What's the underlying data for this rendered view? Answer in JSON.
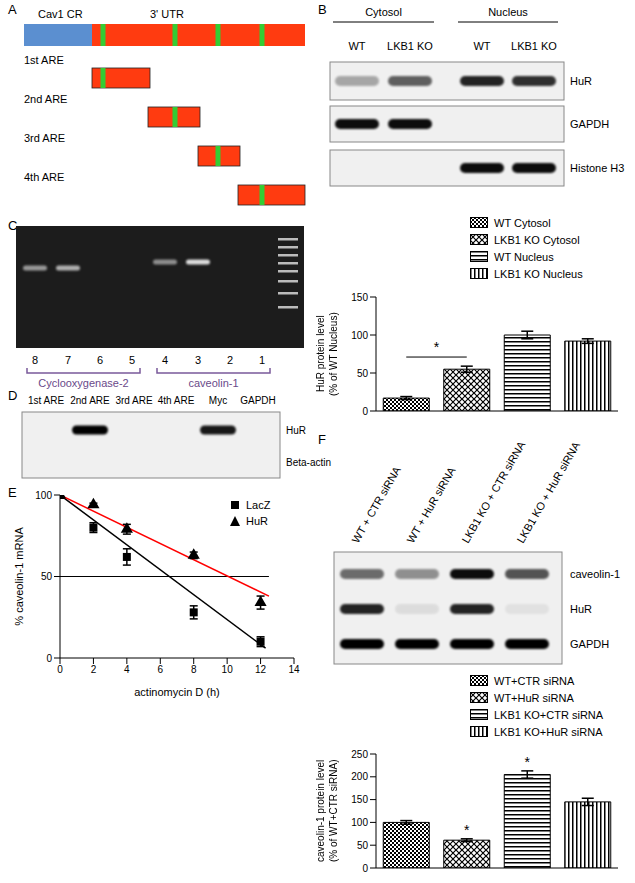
{
  "panels": [
    "A",
    "B",
    "C",
    "D",
    "E",
    "F"
  ],
  "diagram_a": {
    "coding_region": "Cav1 CR",
    "utr": "3' UTR",
    "fragments": [
      "1st ARE",
      "2nd ARE",
      "3rd ARE",
      "4th ARE"
    ]
  },
  "blot_b": {
    "lanes": [
      "WT",
      "LKB1 KO",
      "WT",
      "LKB1 KO"
    ],
    "groups": [
      {
        "label": "Cytosol",
        "lanes": [
          0,
          1
        ]
      },
      {
        "label": "Nucleus",
        "lanes": [
          2,
          3
        ]
      }
    ],
    "rows": [
      {
        "label": "HuR",
        "bands": [
          0.3,
          0.6,
          0.85,
          0.8
        ]
      },
      {
        "label": "GAPDH",
        "bands": [
          0.95,
          0.95,
          0,
          0
        ]
      },
      {
        "label": "Histone H3",
        "bands": [
          0,
          0,
          0.95,
          0.95
        ]
      }
    ]
  },
  "gel_c": {
    "lanes": [
      "8",
      "7",
      "6",
      "5",
      "4",
      "3",
      "2",
      "1"
    ],
    "bands": [
      0.55,
      0.65,
      0,
      0,
      0.5,
      0.85,
      0,
      0
    ],
    "groups": [
      {
        "label": "Cyclooxygenase-2",
        "lanes": [
          "8",
          "7",
          "6",
          "5"
        ]
      },
      {
        "label": "caveolin-1",
        "lanes": [
          "4",
          "3",
          "2",
          "1"
        ]
      }
    ]
  },
  "blot_d": {
    "lanes": [
      "1st ARE",
      "2nd ARE",
      "3rd ARE",
      "4th ARE",
      "Myc",
      "GAPDH"
    ],
    "rows": [
      {
        "label": "HuR",
        "bands": [
          0,
          1,
          0,
          0,
          0.9,
          0
        ]
      },
      {
        "label": "Beta-actin",
        "bands": [
          0,
          0,
          0,
          0,
          0,
          0
        ]
      }
    ]
  },
  "blot_f": {
    "lanes": [
      "WT + CTR siRNA",
      "WT + HuR siRNA",
      "LKB1 KO + CTR siRNA",
      "LKB1 KO + HuR siRNA"
    ],
    "rows": [
      {
        "label": "caveolin-1",
        "bands": [
          0.55,
          0.4,
          0.95,
          0.65
        ]
      },
      {
        "label": "HuR",
        "bands": [
          0.85,
          0.08,
          0.85,
          0.06
        ]
      },
      {
        "label": "GAPDH",
        "bands": [
          1,
          1,
          1,
          1
        ]
      }
    ]
  },
  "chart_data": [
    {
      "type": "bar",
      "categories": [
        "WT Cytosol",
        "LKB1 KO Cytosol",
        "WT Nucleus",
        "LKB1 KO Nucleus"
      ],
      "values": [
        17,
        55,
        100,
        92
      ],
      "errors": [
        2,
        4,
        5,
        3
      ],
      "y_label": "HuR protein level (% of WT Nucleus)",
      "ylim": [
        0,
        150
      ],
      "yticks": [
        0,
        50,
        100,
        150
      ],
      "legend": "upper right",
      "tick_labels": "y",
      "annotations": [
        {
          "text": "*",
          "categories": [
            "WT Cytosol",
            "LKB1 KO Cytosol"
          ]
        }
      ]
    },
    {
      "type": "scatter",
      "x_label": "actinomycin D (h)",
      "y_label": "% caveolin-1 mRNA",
      "xlim": [
        0,
        14
      ],
      "xticks": [
        0,
        2,
        4,
        6,
        8,
        10,
        12,
        14
      ],
      "ylim": [
        0,
        100
      ],
      "yticks": [
        0,
        50,
        100
      ],
      "legend": "upper right",
      "series": [
        {
          "name": "LacZ",
          "color": "#000000",
          "marker": "square",
          "x": [
            0,
            2,
            4,
            8,
            12
          ],
          "values": [
            100,
            80,
            62,
            28,
            10
          ],
          "errors": [
            0,
            3,
            5,
            4,
            3
          ]
        },
        {
          "name": "HuR",
          "color": "#000000",
          "marker": "triangle",
          "x": [
            0,
            2,
            4,
            8,
            12
          ],
          "values": [
            100,
            94,
            79,
            63,
            34
          ],
          "errors": [
            0,
            1,
            3,
            2,
            4
          ]
        }
      ],
      "fit_lines": [
        {
          "color": "#000000",
          "x": [
            0,
            12.3
          ],
          "values": [
            100,
            6
          ]
        },
        {
          "color": "#ff0000",
          "x": [
            0,
            12.5
          ],
          "values": [
            100,
            38
          ]
        }
      ],
      "reference_line": {
        "value": 50,
        "x": [
          0,
          12.5
        ]
      }
    },
    {
      "type": "bar",
      "categories": [
        "WT+CTR siRNA",
        "WT+HuR siRNA",
        "LKB1 KO+CTR siRNA",
        "LKB1 KO+HuR siRNA"
      ],
      "values": [
        100,
        61,
        205,
        145
      ],
      "errors": [
        4,
        3,
        8,
        8
      ],
      "y_label": "caveolin-1 protein level (% of WT+CTR siRNA)",
      "ylim": [
        0,
        250
      ],
      "yticks": [
        0,
        50,
        100,
        150,
        200,
        250
      ],
      "legend": "upper right",
      "tick_labels": "y",
      "annotations": [
        {
          "text": "*",
          "categories": [
            "WT+HuR siRNA"
          ]
        },
        {
          "text": "*",
          "categories": [
            "LKB1 KO+CTR siRNA"
          ]
        }
      ]
    }
  ]
}
